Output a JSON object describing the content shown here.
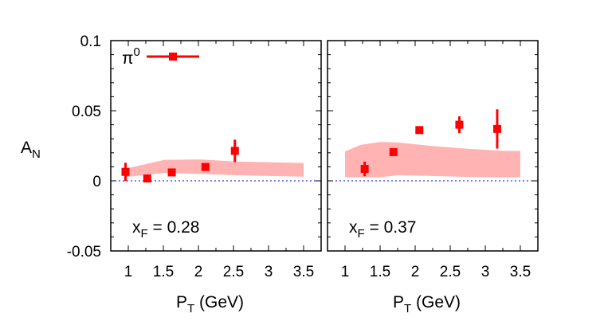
{
  "chart_data": [
    {
      "type": "scatter",
      "annotation": {
        "main": "x",
        "sub": "F",
        "rest": " = 0.28"
      },
      "legend": {
        "main": "π",
        "sup": "0",
        "placement": "top-left"
      },
      "xlabel": {
        "main": "P",
        "sub": "T",
        "rest": " (GeV)"
      },
      "ylabel": {
        "main": "A",
        "sub": "N"
      },
      "xlim": [
        0.75,
        3.75
      ],
      "ylim": [
        -0.05,
        0.1
      ],
      "xticks": [
        "1",
        "1.5",
        "2",
        "2.5",
        "3",
        "3.5"
      ],
      "yticks": [
        "0.1",
        "0.05",
        "0",
        "-0.05"
      ],
      "reference_line": 0,
      "points": [
        {
          "x": 0.96,
          "y": 0.0064,
          "err": 0.0065
        },
        {
          "x": 1.27,
          "y": 0.0017,
          "err": 0.0
        },
        {
          "x": 1.62,
          "y": 0.006,
          "err": 0.0
        },
        {
          "x": 2.1,
          "y": 0.0099,
          "err": 0.0
        },
        {
          "x": 2.52,
          "y": 0.0214,
          "err": 0.008
        }
      ],
      "band": {
        "x": [
          0.96,
          1.51,
          2.01,
          2.53,
          3.5
        ],
        "upper": [
          0.0087,
          0.0149,
          0.0153,
          0.0138,
          0.0127
        ],
        "lower": [
          0.0027,
          0.0057,
          0.005,
          0.004,
          0.003
        ]
      }
    },
    {
      "type": "scatter",
      "annotation": {
        "main": "x",
        "sub": "F",
        "rest": " = 0.37"
      },
      "xlabel": {
        "main": "P",
        "sub": "T",
        "rest": " (GeV)"
      },
      "xlim": [
        0.75,
        3.75
      ],
      "ylim": [
        -0.05,
        0.1
      ],
      "xticks": [
        "1",
        "1.5",
        "2",
        "2.5",
        "3",
        "3.5"
      ],
      "reference_line": 0,
      "points": [
        {
          "x": 1.28,
          "y": 0.0085,
          "err": 0.0052
        },
        {
          "x": 1.69,
          "y": 0.0205,
          "err": 0.0
        },
        {
          "x": 2.06,
          "y": 0.0362,
          "err": 0.0015
        },
        {
          "x": 2.63,
          "y": 0.04,
          "err": 0.006
        },
        {
          "x": 3.17,
          "y": 0.037,
          "err": 0.014
        }
      ],
      "band": {
        "x": [
          1.0,
          1.23,
          1.5,
          1.75,
          2.25,
          2.75,
          3.24,
          3.5
        ],
        "upper": [
          0.021,
          0.0257,
          0.0277,
          0.0274,
          0.0248,
          0.0229,
          0.0214,
          0.0214
        ],
        "lower": [
          0.0025,
          0.0025,
          0.0025,
          0.004,
          0.0035,
          0.0028,
          0.0025,
          0.0025
        ]
      }
    }
  ],
  "colors": {
    "points": "#ff0000",
    "band": "#ffb3b3",
    "zero_line": "#0000ff"
  }
}
